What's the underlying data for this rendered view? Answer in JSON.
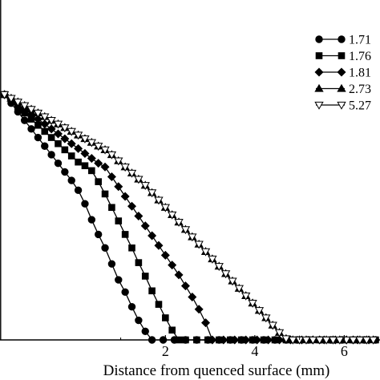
{
  "chart_data": {
    "type": "line",
    "title": "",
    "xlabel": "Distance from quenced surface (mm)",
    "ylabel": "",
    "xlim": [
      -1.7,
      6.8
    ],
    "ylim": [
      0,
      1.0
    ],
    "x_ticks": [
      2,
      4,
      6
    ],
    "y_ticks": [],
    "grid": false,
    "legend_position": "top-right",
    "series": [
      {
        "name": "1.71",
        "marker": "circle-filled",
        "x": [
          -1.6,
          -1.45,
          -1.3,
          -1.15,
          -1.0,
          -0.85,
          -0.7,
          -0.55,
          -0.4,
          -0.25,
          -0.1,
          0.05,
          0.2,
          0.35,
          0.5,
          0.65,
          0.8,
          0.95,
          1.1,
          1.25,
          1.4,
          1.55,
          1.7,
          1.95,
          2.2,
          2.45,
          2.7,
          2.95,
          3.2,
          3.45,
          3.7,
          3.95,
          4.2,
          4.45,
          4.7,
          4.95,
          5.2,
          5.45,
          5.7,
          5.95,
          6.2,
          6.45,
          6.7
        ],
        "y": [
          1.0,
          0.965,
          0.93,
          0.895,
          0.86,
          0.825,
          0.79,
          0.755,
          0.72,
          0.685,
          0.65,
          0.61,
          0.555,
          0.49,
          0.43,
          0.375,
          0.31,
          0.245,
          0.195,
          0.135,
          0.08,
          0.035,
          0.0,
          0.0,
          0.0,
          0.0,
          0.0,
          0.0,
          0.0,
          0.0,
          0.0,
          0.0,
          0.0,
          0.0,
          0.0,
          0.0,
          0.0,
          0.0,
          0.0,
          0.0,
          0.0,
          0.0,
          0.0
        ]
      },
      {
        "name": "1.76",
        "marker": "square-filled",
        "x": [
          -1.6,
          -1.45,
          -1.3,
          -1.15,
          -1.0,
          -0.85,
          -0.7,
          -0.55,
          -0.4,
          -0.25,
          -0.1,
          0.05,
          0.2,
          0.35,
          0.5,
          0.65,
          0.8,
          0.95,
          1.1,
          1.25,
          1.4,
          1.55,
          1.7,
          1.85,
          2.0,
          2.15,
          2.3,
          2.45,
          2.7,
          2.95,
          3.2,
          3.45,
          3.7,
          3.95,
          4.2,
          4.45,
          4.7,
          4.95,
          5.2,
          5.45,
          5.7,
          5.95,
          6.2,
          6.45,
          6.7
        ],
        "y": [
          1.0,
          0.975,
          0.95,
          0.925,
          0.9,
          0.875,
          0.85,
          0.825,
          0.8,
          0.775,
          0.75,
          0.725,
          0.71,
          0.69,
          0.645,
          0.595,
          0.54,
          0.485,
          0.43,
          0.375,
          0.315,
          0.26,
          0.2,
          0.145,
          0.09,
          0.04,
          0.0,
          0.0,
          0.0,
          0.0,
          0.0,
          0.0,
          0.0,
          0.0,
          0.0,
          0.0,
          0.0,
          0.0,
          0.0,
          0.0,
          0.0,
          0.0,
          0.0,
          0.0,
          0.0
        ]
      },
      {
        "name": "1.81",
        "marker": "diamond-filled",
        "x": [
          -1.6,
          -1.45,
          -1.3,
          -1.15,
          -1.0,
          -0.85,
          -0.7,
          -0.55,
          -0.4,
          -0.25,
          -0.1,
          0.05,
          0.2,
          0.35,
          0.5,
          0.65,
          0.8,
          0.95,
          1.1,
          1.25,
          1.4,
          1.55,
          1.7,
          1.85,
          2.0,
          2.15,
          2.3,
          2.45,
          2.6,
          2.75,
          2.9,
          3.05,
          3.3,
          3.55,
          3.8,
          4.05,
          4.3,
          4.55,
          4.8,
          5.05,
          5.3,
          5.55,
          5.8,
          6.05,
          6.3,
          6.55
        ],
        "y": [
          1.0,
          0.98,
          0.96,
          0.94,
          0.92,
          0.9,
          0.88,
          0.86,
          0.84,
          0.82,
          0.8,
          0.78,
          0.76,
          0.74,
          0.72,
          0.705,
          0.665,
          0.625,
          0.585,
          0.545,
          0.505,
          0.465,
          0.425,
          0.385,
          0.345,
          0.305,
          0.265,
          0.22,
          0.175,
          0.125,
          0.07,
          0.0,
          0.0,
          0.0,
          0.0,
          0.0,
          0.0,
          0.0,
          0.0,
          0.0,
          0.0,
          0.0,
          0.0,
          0.0,
          0.0,
          0.0
        ]
      },
      {
        "name": "2.73",
        "marker": "triangle-filled",
        "x": [
          -1.6,
          -1.45,
          -1.3,
          -1.15,
          -1.0,
          -0.85,
          -0.7,
          -0.55,
          -0.4,
          -0.25,
          -0.1,
          0.05,
          0.2,
          0.35,
          0.5,
          0.65,
          0.8,
          0.95,
          1.1,
          1.25,
          1.4,
          1.55,
          1.7,
          1.85,
          2.0,
          2.15,
          2.3,
          2.45,
          2.6,
          2.75,
          2.9,
          3.05,
          3.2,
          3.35,
          3.5,
          3.65,
          3.8,
          3.95,
          4.1,
          4.25,
          4.4,
          4.55,
          4.7,
          4.85,
          5.0,
          5.15,
          5.3,
          5.45,
          5.6,
          5.75,
          5.9,
          6.05,
          6.2,
          6.35,
          6.5,
          6.65
        ],
        "y": [
          1.0,
          0.985,
          0.97,
          0.955,
          0.94,
          0.925,
          0.91,
          0.895,
          0.88,
          0.865,
          0.85,
          0.835,
          0.82,
          0.805,
          0.79,
          0.775,
          0.755,
          0.73,
          0.705,
          0.68,
          0.655,
          0.63,
          0.6,
          0.57,
          0.54,
          0.51,
          0.48,
          0.45,
          0.42,
          0.39,
          0.36,
          0.33,
          0.3,
          0.27,
          0.24,
          0.21,
          0.18,
          0.15,
          0.12,
          0.09,
          0.06,
          0.03,
          0.005,
          0.0,
          0.0,
          0.0,
          0.0,
          0.0,
          0.0,
          0.0,
          0.0,
          0.0,
          0.0,
          0.0,
          0.0,
          0.0
        ]
      },
      {
        "name": "5.27",
        "marker": "triangle-down-open",
        "x": [
          -1.6,
          -1.45,
          -1.3,
          -1.15,
          -1.0,
          -0.85,
          -0.7,
          -0.55,
          -0.4,
          -0.25,
          -0.1,
          0.05,
          0.2,
          0.35,
          0.5,
          0.65,
          0.8,
          0.95,
          1.1,
          1.25,
          1.4,
          1.55,
          1.7,
          1.85,
          2.0,
          2.15,
          2.3,
          2.45,
          2.6,
          2.75,
          2.9,
          3.05,
          3.2,
          3.35,
          3.5,
          3.65,
          3.8,
          3.95,
          4.1,
          4.25,
          4.4,
          4.55,
          4.7,
          4.85,
          5.0,
          5.15,
          5.3,
          5.45,
          5.6,
          5.75,
          5.9,
          6.05,
          6.2,
          6.35,
          6.5,
          6.65
        ],
        "y": [
          1.0,
          0.985,
          0.97,
          0.955,
          0.94,
          0.925,
          0.91,
          0.895,
          0.88,
          0.865,
          0.85,
          0.835,
          0.82,
          0.805,
          0.79,
          0.775,
          0.755,
          0.73,
          0.705,
          0.68,
          0.655,
          0.63,
          0.6,
          0.57,
          0.54,
          0.51,
          0.48,
          0.45,
          0.42,
          0.39,
          0.36,
          0.33,
          0.3,
          0.27,
          0.24,
          0.21,
          0.18,
          0.15,
          0.12,
          0.09,
          0.06,
          0.03,
          0.005,
          0.0,
          0.0,
          0.0,
          0.0,
          0.0,
          0.0,
          0.0,
          0.0,
          0.0,
          0.0,
          0.0,
          0.0,
          0.0
        ]
      }
    ]
  }
}
